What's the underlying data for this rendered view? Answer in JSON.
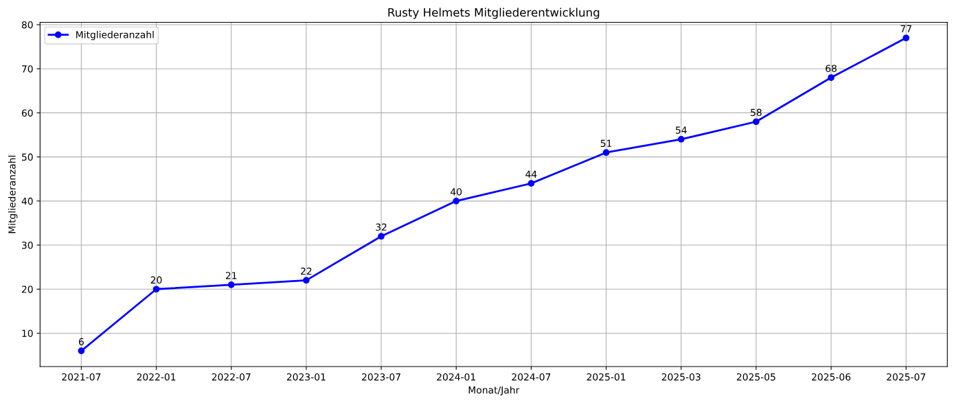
{
  "chart_data": {
    "type": "line",
    "title": "Rusty Helmets Mitgliederentwicklung",
    "xlabel": "Monat/Jahr",
    "ylabel": "Mitgliederanzahl",
    "categories": [
      "2021-07",
      "2022-01",
      "2022-07",
      "2023-01",
      "2023-07",
      "2024-01",
      "2024-07",
      "2025-01",
      "2025-03",
      "2025-05",
      "2025-06",
      "2025-07"
    ],
    "series": [
      {
        "name": "Mitgliederanzahl",
        "color": "#0000ff",
        "values": [
          6,
          20,
          21,
          22,
          32,
          40,
          44,
          51,
          54,
          58,
          68,
          77
        ]
      }
    ],
    "ylim": [
      2.45,
      80.55
    ],
    "yticks": [
      10,
      20,
      30,
      40,
      50,
      60,
      70,
      80
    ],
    "grid": true,
    "legend": "top left",
    "marker": "circle",
    "line_style": "solid",
    "data_labels": true
  }
}
